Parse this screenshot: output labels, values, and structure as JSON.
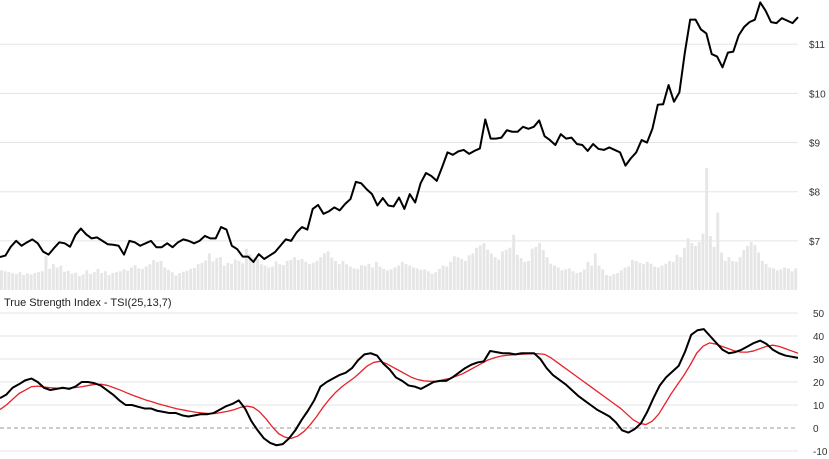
{
  "colors": {
    "price_line": "#000000",
    "volume_bar": "#e6e6e6",
    "tsi_line": "#000000",
    "signal_line": "#e8212b",
    "grid": "#e5e5e5",
    "zero_line": "#999999"
  },
  "chart_data": [
    {
      "type": "line",
      "panel": "price",
      "y_ticks": [
        "$7",
        "$8",
        "$9",
        "$10",
        "$11"
      ],
      "ylim": [
        6.0,
        11.9
      ],
      "grid": true,
      "series": [
        {
          "values": [
            6.67,
            6.7,
            6.88,
            7.0,
            6.9,
            6.97,
            7.03,
            6.95,
            6.78,
            6.72,
            6.85,
            6.97,
            6.95,
            6.88,
            7.12,
            7.25,
            7.13,
            7.05,
            7.07,
            7.0,
            6.93,
            6.92,
            6.9,
            6.72,
            7.0,
            6.97,
            6.9,
            6.95,
            7.0,
            6.87,
            6.87,
            6.95,
            6.87,
            6.97,
            7.03,
            7.0,
            6.95,
            7.0,
            7.1,
            7.05,
            7.05,
            7.28,
            7.23,
            6.9,
            6.83,
            6.68,
            6.68,
            6.57,
            6.73,
            6.63,
            6.7,
            6.77,
            6.9,
            7.03,
            7.0,
            7.17,
            7.28,
            7.23,
            7.65,
            7.73,
            7.55,
            7.6,
            7.68,
            7.62,
            7.75,
            7.85,
            8.2,
            8.17,
            8.05,
            7.95,
            7.72,
            7.87,
            7.72,
            7.7,
            7.88,
            7.65,
            7.95,
            7.78,
            8.17,
            8.38,
            8.32,
            8.22,
            8.5,
            8.8,
            8.75,
            8.82,
            8.85,
            8.77,
            8.83,
            8.88,
            9.47,
            9.08,
            9.08,
            9.1,
            9.25,
            9.22,
            9.22,
            9.32,
            9.28,
            9.32,
            9.45,
            9.13,
            9.05,
            8.95,
            9.17,
            9.08,
            9.1,
            8.97,
            8.95,
            8.83,
            8.97,
            8.87,
            8.85,
            8.9,
            8.85,
            8.8,
            8.53,
            8.68,
            8.8,
            9.05,
            9.0,
            9.28,
            9.77,
            9.78,
            10.17,
            9.83,
            10.02,
            10.82,
            11.5,
            11.5,
            11.3,
            11.22,
            10.8,
            10.75,
            10.53,
            10.83,
            10.85,
            11.18,
            11.35,
            11.45,
            11.5,
            11.85,
            11.68,
            11.45,
            11.43,
            11.53,
            11.48,
            11.43,
            11.55
          ]
        }
      ]
    },
    {
      "type": "bar",
      "panel": "volume",
      "series": [
        {
          "values": [
            0.42,
            0.4,
            0.38,
            0.36,
            0.34,
            0.38,
            0.32,
            0.35,
            0.33,
            0.36,
            0.38,
            0.4,
            0.72,
            0.45,
            0.55,
            0.48,
            0.52,
            0.39,
            0.41,
            0.35,
            0.37,
            0.3,
            0.33,
            0.42,
            0.34,
            0.38,
            0.45,
            0.36,
            0.4,
            0.32,
            0.36,
            0.38,
            0.4,
            0.44,
            0.41,
            0.48,
            0.53,
            0.46,
            0.45,
            0.5,
            0.55,
            0.64,
            0.6,
            0.62,
            0.48,
            0.43,
            0.38,
            0.31,
            0.36,
            0.39,
            0.41,
            0.45,
            0.47,
            0.55,
            0.58,
            0.63,
            0.78,
            0.61,
            0.68,
            0.7,
            0.52,
            0.58,
            0.56,
            0.65,
            0.62,
            0.57,
            0.88,
            0.76,
            0.7,
            0.66,
            0.55,
            0.52,
            0.48,
            0.5,
            0.61,
            0.55,
            0.53,
            0.62,
            0.64,
            0.7,
            0.64,
            0.66,
            0.6,
            0.55,
            0.58,
            0.62,
            0.7,
            0.78,
            0.82,
            0.69,
            0.62,
            0.55,
            0.62,
            0.55,
            0.5,
            0.46,
            0.45,
            0.53,
            0.52,
            0.56,
            0.48,
            0.6,
            0.5,
            0.45,
            0.42,
            0.44,
            0.48,
            0.52,
            0.6,
            0.55,
            0.52,
            0.48,
            0.46,
            0.43,
            0.44,
            0.4,
            0.35,
            0.38,
            0.45,
            0.52,
            0.5,
            0.6,
            0.72,
            0.7,
            0.66,
            0.62,
            0.74,
            0.78,
            0.9,
            0.95,
            1.0,
            0.86,
            0.78,
            0.7,
            0.65,
            0.82,
            0.86,
            0.9,
            1.18,
            0.75,
            0.68,
            0.6,
            0.62,
            0.88,
            0.92,
            1.0,
            0.85,
            0.7,
            0.56,
            0.52,
            0.48,
            0.42,
            0.44,
            0.46,
            0.4,
            0.36,
            0.38,
            0.44,
            0.6,
            0.52,
            0.78,
            0.52,
            0.44,
            0.32,
            0.3,
            0.34,
            0.36,
            0.42,
            0.48,
            0.5,
            0.64,
            0.62,
            0.58,
            0.55,
            0.6,
            0.56,
            0.5,
            0.48,
            0.52,
            0.56,
            0.62,
            0.6,
            0.75,
            0.7,
            0.9,
            1.1,
            1.0,
            0.94,
            1.02,
            1.2,
            2.6,
            1.15,
            0.92,
            1.65,
            0.8,
            0.62,
            0.7,
            0.62,
            0.6,
            0.7,
            0.85,
            0.94,
            1.02,
            0.96,
            0.8,
            0.62,
            0.55,
            0.48,
            0.46,
            0.42,
            0.44,
            0.48,
            0.46,
            0.4,
            0.46
          ]
        }
      ]
    },
    {
      "type": "line",
      "panel": "indicator",
      "title": "True Strength Index - TSI(25,13,7)",
      "y_ticks": [
        "50",
        "40",
        "30",
        "20",
        "10",
        "0",
        "-10"
      ],
      "ylim": [
        -10,
        50
      ],
      "grid": true,
      "series": [
        {
          "values": [
            13.0,
            14.5,
            17.5,
            19.0,
            20.7,
            21.5,
            20.0,
            17.5,
            16.5,
            17.0,
            17.5,
            17.0,
            18.0,
            20.0,
            20.0,
            19.5,
            18.5,
            16.5,
            14.5,
            12.0,
            10.0,
            10.0,
            9.2,
            8.5,
            8.5,
            7.5,
            7.0,
            6.5,
            6.5,
            5.5,
            5.0,
            5.5,
            6.0,
            6.0,
            6.5,
            8.0,
            9.5,
            10.5,
            12.0,
            8.5,
            3.0,
            -1.0,
            -4.5,
            -6.5,
            -7.5,
            -7.0,
            -4.5,
            -1.0,
            3.5,
            7.5,
            12.0,
            18.0,
            20.0,
            21.5,
            23.0,
            24.0,
            26.0,
            29.5,
            32.0,
            32.5,
            31.5,
            28.0,
            25.5,
            22.0,
            20.5,
            18.5,
            18.0,
            17.0,
            18.5,
            20.0,
            20.5,
            20.5,
            22.0,
            24.0,
            26.0,
            27.5,
            28.5,
            29.0,
            33.5,
            33.0,
            32.5,
            32.5,
            32.0,
            32.5,
            32.5,
            32.5,
            30.0,
            26.0,
            23.0,
            21.0,
            19.0,
            16.5,
            14.0,
            12.0,
            10.0,
            8.0,
            6.5,
            5.0,
            2.5,
            -1.0,
            -2.0,
            -0.5,
            2.0,
            7.0,
            13.0,
            18.5,
            22.0,
            24.5,
            27.0,
            33.0,
            40.5,
            42.5,
            43.0,
            40.0,
            37.0,
            34.0,
            32.5,
            33.0,
            34.0,
            35.5,
            37.0,
            38.0,
            36.5,
            34.0,
            32.5,
            31.5,
            31.0,
            30.5
          ]
        },
        {
          "values": [
            8.0,
            10.0,
            12.5,
            15.0,
            16.5,
            18.0,
            18.2,
            17.8,
            17.5,
            17.3,
            17.2,
            17.4,
            17.6,
            18.0,
            18.5,
            19.0,
            19.0,
            18.5,
            17.5,
            16.5,
            15.3,
            14.2,
            13.2,
            12.2,
            11.4,
            10.5,
            9.8,
            9.0,
            8.3,
            7.8,
            7.3,
            6.8,
            6.5,
            6.3,
            6.3,
            6.8,
            7.3,
            8.0,
            9.0,
            9.5,
            9.0,
            7.0,
            4.0,
            0.5,
            -2.5,
            -4.0,
            -4.5,
            -3.5,
            -1.5,
            1.5,
            5.0,
            9.0,
            12.5,
            15.5,
            18.0,
            20.0,
            22.0,
            24.5,
            27.0,
            28.5,
            29.0,
            28.0,
            26.5,
            25.0,
            23.5,
            22.0,
            21.0,
            20.5,
            20.3,
            20.3,
            21.0,
            21.5,
            22.5,
            23.5,
            25.0,
            26.5,
            28.0,
            29.5,
            30.5,
            31.2,
            31.6,
            31.8,
            32.0,
            32.2,
            32.3,
            32.3,
            32.0,
            30.5,
            28.5,
            26.5,
            24.5,
            22.5,
            20.5,
            18.5,
            16.5,
            14.5,
            12.5,
            10.5,
            8.5,
            6.0,
            3.5,
            2.0,
            1.5,
            3.0,
            6.0,
            10.5,
            15.0,
            19.0,
            23.0,
            27.5,
            32.5,
            35.5,
            37.0,
            36.5,
            35.5,
            34.5,
            33.5,
            33.0,
            33.0,
            33.5,
            34.5,
            35.5,
            36.0,
            35.5,
            34.5,
            33.5,
            32.5
          ]
        }
      ]
    }
  ]
}
